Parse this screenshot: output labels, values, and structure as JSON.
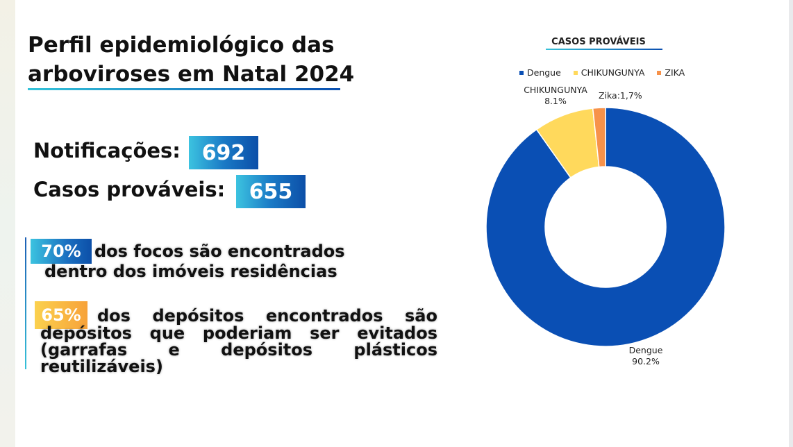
{
  "title_line1": "Perfil epidemiológico das",
  "title_line2": "arboviroses em Natal 2024",
  "stats": {
    "notificacoes_label": "Notificações:",
    "notificacoes_value": "692",
    "casos_label": "Casos prováveis:",
    "casos_value": "655"
  },
  "facts": {
    "f1_pct": "70%",
    "f1_line1": "dos focos são encontrados",
    "f1_line2": "dentro dos imóveis residências",
    "f2_pct": "65%",
    "f2_line1": "dos depósitos encontrados são",
    "f2_line2": "depósitos que poderiam ser evitados",
    "f2_line3": "(garrafas e depósitos plásticos reutilizáveis)"
  },
  "colors": {
    "dengue": "#0a4fb4",
    "chikungunya": "#ffd95c",
    "zika": "#f7924a"
  },
  "chart_data": {
    "type": "pie",
    "variant": "donut",
    "title": "CASOS PROVÁVEIS",
    "legend_position": "top",
    "categories": [
      "Dengue",
      "CHIKUNGUNYA",
      "ZIKA"
    ],
    "values": [
      90.2,
      8.1,
      1.7
    ],
    "unit": "%",
    "data_labels": {
      "dengue_name": "Dengue",
      "dengue_value": "90.2%",
      "chik_name": "CHIKUNGUNYA",
      "chik_value": "8.1%",
      "zika": "Zika:1,7%"
    }
  }
}
